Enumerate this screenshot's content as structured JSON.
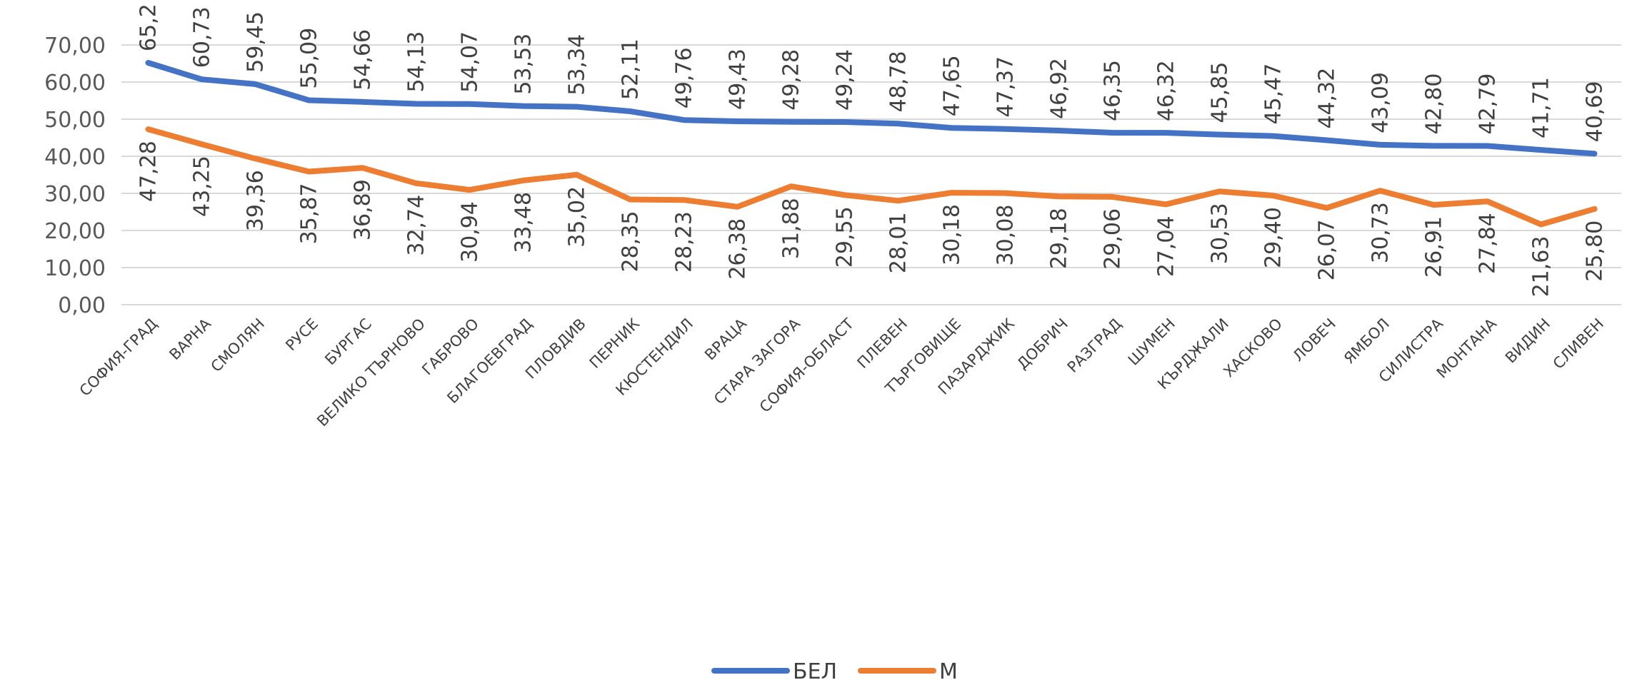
{
  "chart_data": {
    "type": "line",
    "title": "",
    "xlabel": "",
    "ylabel": "",
    "ylim": [
      0,
      70
    ],
    "yticks": [
      "0,00",
      "10,00",
      "20,00",
      "30,00",
      "40,00",
      "50,00",
      "60,00",
      "70,00"
    ],
    "grid": true,
    "legend_position": "bottom",
    "categories": [
      "СОФИЯ-ГРАД",
      "ВАРНА",
      "СМОЛЯН",
      "РУСЕ",
      "БУРГАС",
      "ВЕЛИКО ТЪРНОВО",
      "ГАБРОВО",
      "БЛАГОЕВГРАД",
      "ПЛОВДИВ",
      "ПЕРНИК",
      "КЮСТЕНДИЛ",
      "ВРАЦА",
      "СТАРА ЗАГОРА",
      "СОФИЯ-ОБЛАСТ",
      "ПЛЕВЕН",
      "ТЪРГОВИЩЕ",
      "ПАЗАРДЖИК",
      "ДОБРИЧ",
      "РАЗГРАД",
      "ШУМЕН",
      "КЪРДЖАЛИ",
      "ХАСКОВО",
      "ЛОВЕЧ",
      "ЯМБОЛ",
      "СИЛИСТРА",
      "МОНТАНА",
      "ВИДИН",
      "СЛИВЕН"
    ],
    "series": [
      {
        "name": "БЕЛ",
        "color": "#4472c4",
        "values": [
          65.2,
          60.73,
          59.45,
          55.09,
          54.66,
          54.13,
          54.07,
          53.53,
          53.34,
          52.11,
          49.76,
          49.43,
          49.28,
          49.24,
          48.78,
          47.65,
          47.37,
          46.92,
          46.35,
          46.32,
          45.85,
          45.47,
          44.32,
          43.09,
          42.8,
          42.79,
          41.71,
          40.69
        ],
        "labels": [
          "65,2",
          "60,73",
          "59,45",
          "55,09",
          "54,66",
          "54,13",
          "54,07",
          "53,53",
          "53,34",
          "52,11",
          "49,76",
          "49,43",
          "49,28",
          "49,24",
          "48,78",
          "47,65",
          "47,37",
          "46,92",
          "46,35",
          "46,32",
          "45,85",
          "45,47",
          "44,32",
          "43,09",
          "42,80",
          "42,79",
          "41,71",
          "40,69"
        ]
      },
      {
        "name": "М",
        "color": "#ed7d31",
        "values": [
          47.28,
          43.25,
          39.36,
          35.87,
          36.89,
          32.74,
          30.94,
          33.48,
          35.02,
          28.35,
          28.23,
          26.38,
          31.88,
          29.55,
          28.01,
          30.18,
          30.08,
          29.18,
          29.06,
          27.04,
          30.53,
          29.4,
          26.07,
          30.73,
          26.91,
          27.84,
          21.63,
          25.8
        ],
        "labels": [
          "47,28",
          "43,25",
          "39,36",
          "35,87",
          "36,89",
          "32,74",
          "30,94",
          "33,48",
          "35,02",
          "28,35",
          "28,23",
          "26,38",
          "31,88",
          "29,55",
          "28,01",
          "30,18",
          "30,08",
          "29,18",
          "29,06",
          "27,04",
          "30,53",
          "29,40",
          "26,07",
          "30,73",
          "26,91",
          "27,84",
          "21,63",
          "25,80"
        ]
      }
    ]
  }
}
